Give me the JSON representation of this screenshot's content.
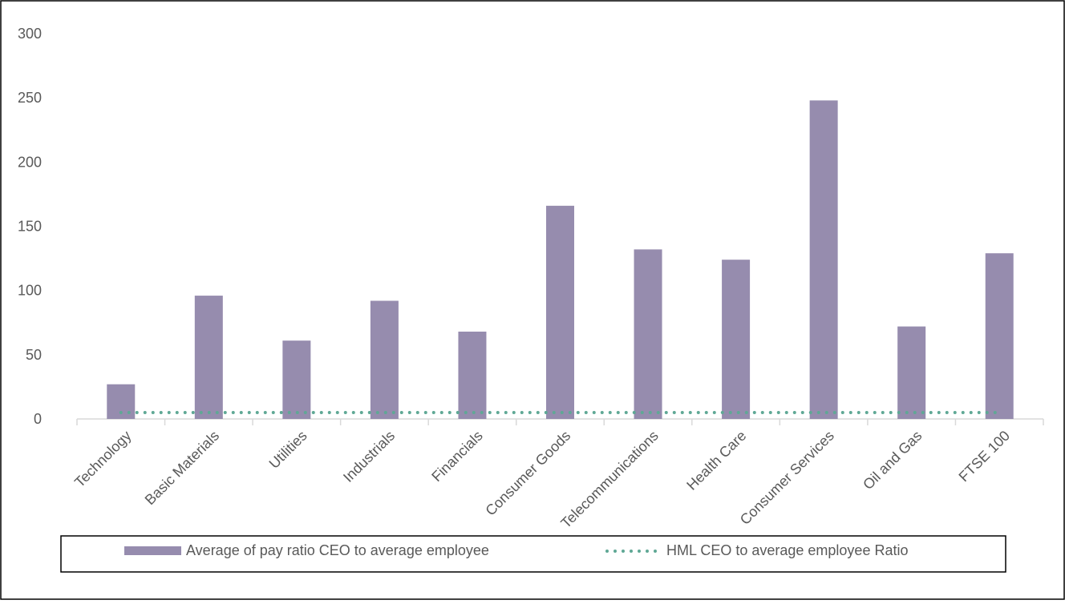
{
  "chart_data": {
    "type": "bar",
    "title": "",
    "xlabel": "",
    "ylabel": "",
    "ylim": [
      0,
      300
    ],
    "yticks": [
      0,
      50,
      100,
      150,
      200,
      250,
      300
    ],
    "grid": false,
    "legend_position": "bottom",
    "categories": [
      "Technology",
      "Basic Materials",
      "Utilities",
      "Industrials",
      "Financials",
      "Consumer Goods",
      "Telecommunications",
      "Health Care",
      "Consumer Services",
      "Oil and Gas",
      "FTSE 100"
    ],
    "series": [
      {
        "name": "Average of pay ratio CEO to average employee",
        "kind": "bar",
        "color": "#968cae",
        "values": [
          27,
          96,
          61,
          92,
          68,
          166,
          132,
          124,
          248,
          72,
          129
        ]
      },
      {
        "name": "HML CEO to average employee Ratio",
        "kind": "dotted-line",
        "color": "#5fa895",
        "values": [
          5,
          5,
          5,
          5,
          5,
          5,
          5,
          5,
          5,
          5,
          5
        ]
      }
    ]
  }
}
